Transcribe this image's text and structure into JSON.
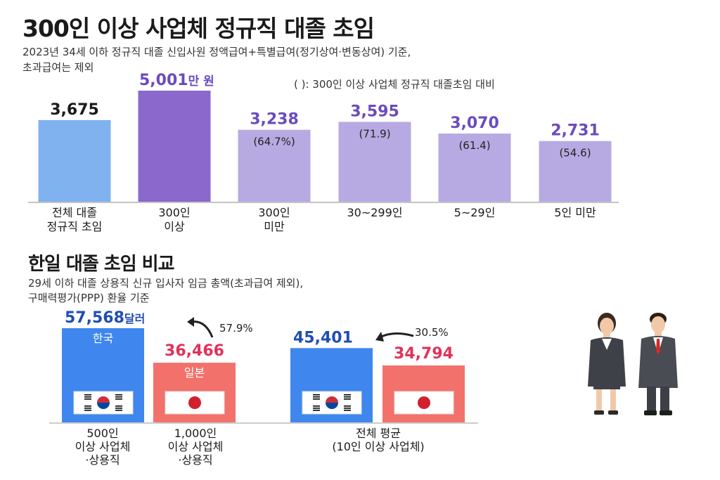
{
  "title": "300인 이상 사업체 정규직 대졸 초임",
  "subtitle_line1": "2023년 34세 이하 정규직 대졸 신입사원 정액급여+특별급여(정기상여·변동상여) 기준,",
  "subtitle_line2": "초과급여는 제외",
  "legend_note": "( ): 300인 이상 사업체 정규직 대졸초임 대비",
  "section2": {
    "title": "한일 대졸 초임 비교",
    "subtitle_line1": "29세 이하 대졸 상용직 신규 입사자 임금 총액(초과급여 제외),",
    "subtitle_line2": "구매력평가(PPP) 환율 기준"
  },
  "colors": {
    "bar_light_blue": "#7fb2ee",
    "bar_highlight": "#8a68cc",
    "bar_lavender": "#b7aae2",
    "value_purple": "#6a4bbf",
    "korea_blue": "#3f86ee",
    "japan_red": "#f3716b",
    "korea_value": "#1f4db5",
    "japan_value": "#e0325a"
  },
  "chart_data": [
    {
      "type": "bar",
      "categories": [
        [
          "전체 대졸",
          "정규직 초임"
        ],
        [
          "300인",
          "이상"
        ],
        [
          "300인",
          "미만"
        ],
        [
          "30~299인"
        ],
        [
          "5~29인"
        ],
        [
          "5인 미만"
        ]
      ],
      "values": [
        3675,
        5001,
        3238,
        3595,
        3070,
        2731
      ],
      "value_labels": [
        "3,675",
        "5,001",
        "3,238",
        "3,595",
        "3,070",
        "2,731"
      ],
      "unit_label": "만 원",
      "ratio_labels": [
        "",
        "",
        "(64.7%)",
        "(71.9)",
        "(61.4)",
        "(54.6)"
      ],
      "ylim": [
        0,
        5001
      ]
    },
    {
      "type": "bar",
      "groups": [
        {
          "label": [
            "500인",
            "이상 사업체",
            "·상용직"
          ],
          "korea": {
            "name": "한국",
            "value": 57568,
            "label": "57,568",
            "unit": "달러"
          },
          "japan": {
            "name": "일본",
            "value": 36466,
            "label": "36,466"
          },
          "gap_label": "57.9%"
        },
        {
          "label": [
            "1,000인",
            "이상 사업체",
            "·상용직"
          ],
          "japan_only_label": true
        },
        {
          "label": [
            "전체 평균",
            "(10인 이상 사업체)"
          ],
          "korea": {
            "name": "",
            "value": 45401,
            "label": "45,401"
          },
          "japan": {
            "name": "",
            "value": 34794,
            "label": "34,794"
          },
          "gap_label": "30.5%"
        }
      ],
      "ylim": [
        0,
        57568
      ]
    }
  ]
}
